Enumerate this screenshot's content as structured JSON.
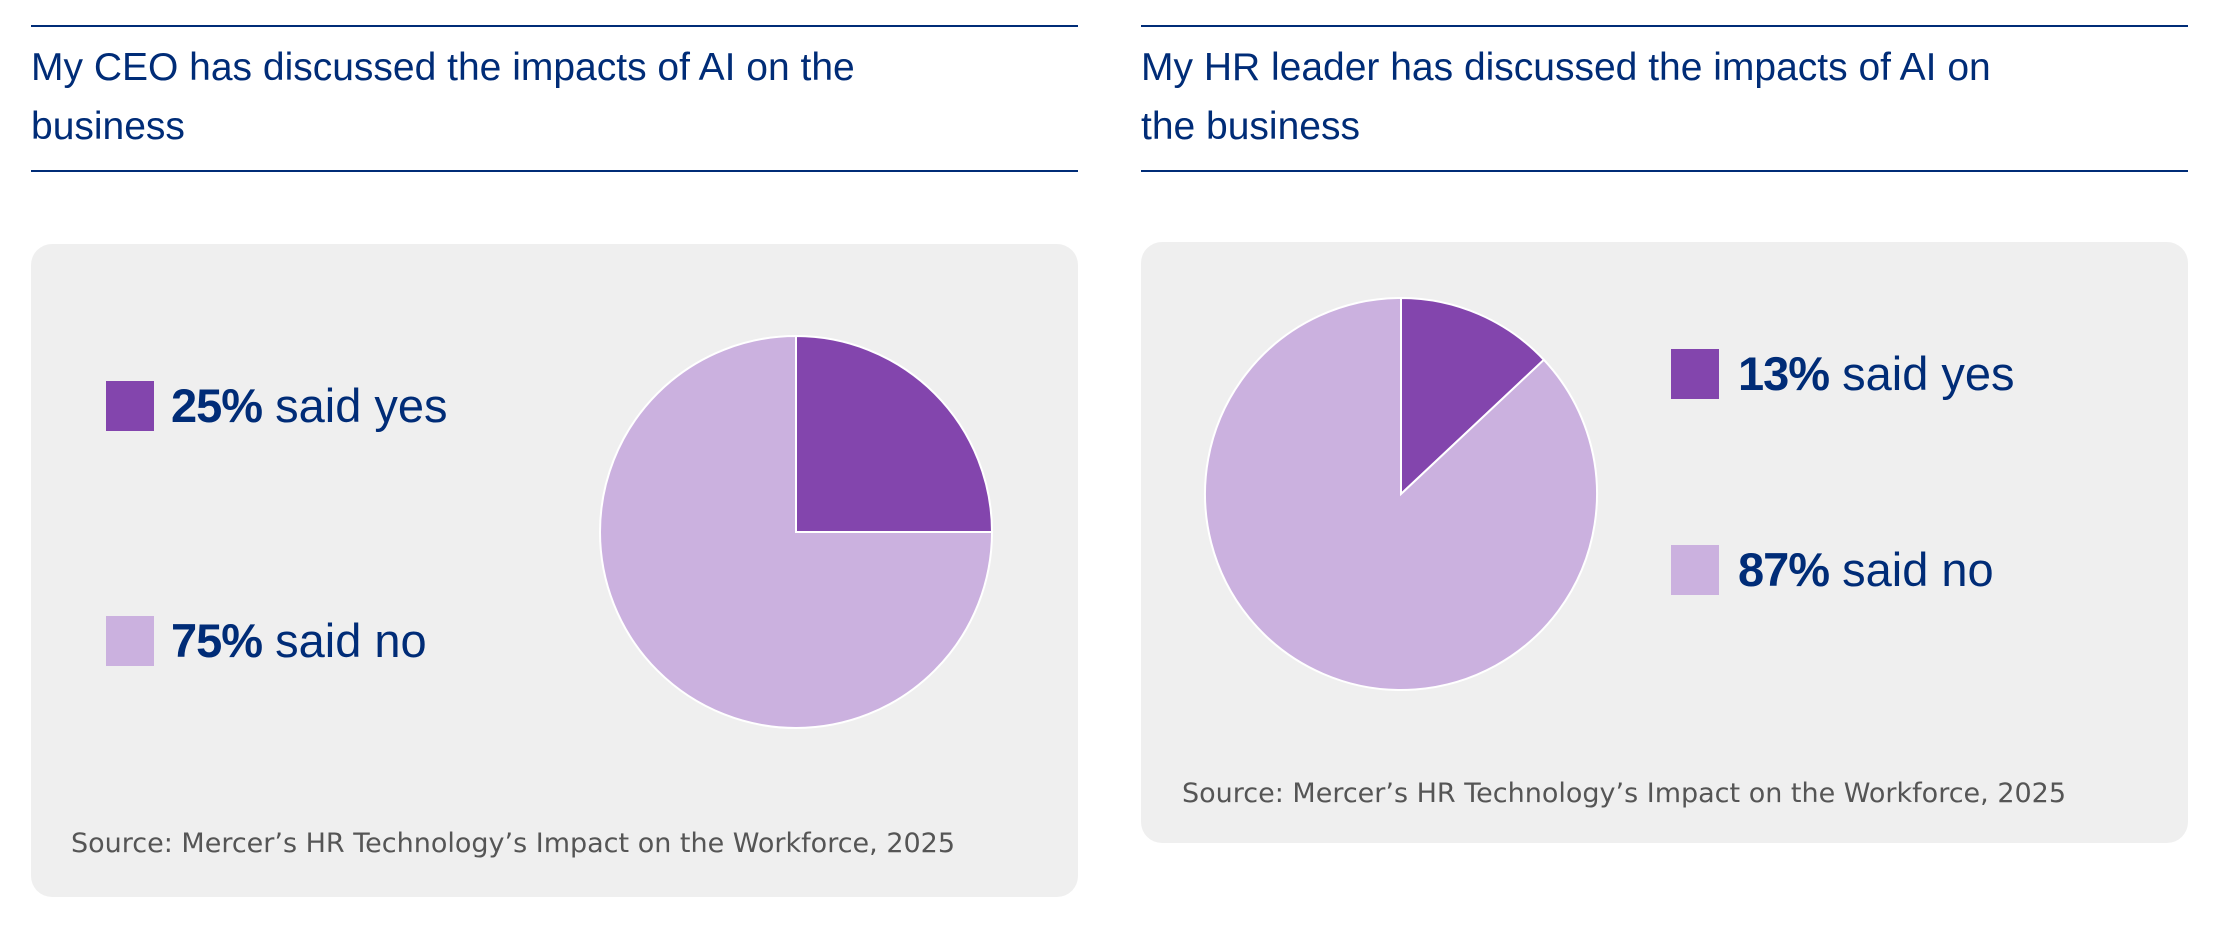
{
  "colors": {
    "yes": "#8345ad",
    "no": "#cbb1df",
    "text": "#002c77",
    "background": "#efefef"
  },
  "source": "Source: Mercer’s HR Technology’s Impact on the Workforce, 2025",
  "chart_data": [
    {
      "type": "pie",
      "title": "My CEO has discussed the impacts of AI on the business",
      "categories": [
        "said yes",
        "said no"
      ],
      "values": [
        25,
        75
      ],
      "labels": [
        {
          "pct": "25%",
          "text": " said yes"
        },
        {
          "pct": "75%",
          "text": " said no"
        }
      ],
      "legend": "left"
    },
    {
      "type": "pie",
      "title": "My HR leader has discussed the impacts of AI on the business",
      "categories": [
        "said yes",
        "said no"
      ],
      "values": [
        13,
        87
      ],
      "labels": [
        {
          "pct": "13%",
          "text": " said yes"
        },
        {
          "pct": "87%",
          "text": " said no"
        }
      ],
      "legend": "right"
    }
  ]
}
